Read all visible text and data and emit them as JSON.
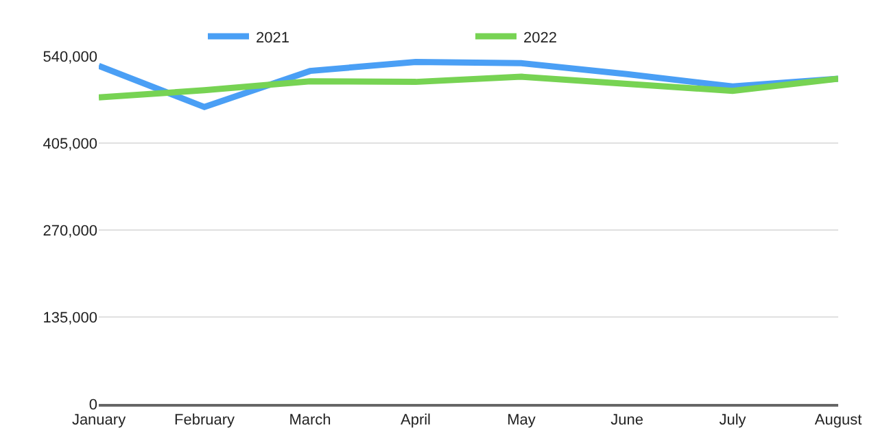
{
  "chart_data": {
    "type": "line",
    "categories": [
      "January",
      "February",
      "March",
      "April",
      "May",
      "June",
      "July",
      "August"
    ],
    "series": [
      {
        "name": "2021",
        "color": "#4a9ff5",
        "values": [
          525000,
          461000,
          517000,
          531000,
          529000,
          512000,
          493000,
          505000
        ]
      },
      {
        "name": "2022",
        "color": "#77d353",
        "values": [
          476000,
          487000,
          501000,
          500000,
          508000,
          497000,
          486000,
          505000
        ]
      }
    ],
    "ylim": [
      0,
      540000
    ],
    "yticks": [
      {
        "value": 0,
        "label": "0"
      },
      {
        "value": 135000,
        "label": "135,000"
      },
      {
        "value": 270000,
        "label": "270,000"
      },
      {
        "value": 405000,
        "label": "405,000"
      },
      {
        "value": 540000,
        "label": "540,000"
      }
    ],
    "grid": "y",
    "legend": "top",
    "marker": "none",
    "line_style": "solid"
  }
}
